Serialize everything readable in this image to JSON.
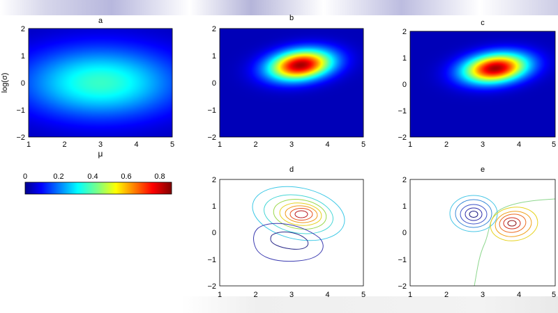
{
  "colors": {
    "background": "#ffffff",
    "axis": "#000000",
    "plot_background": "#00008f",
    "colormap": "jet"
  },
  "chart_data": [
    {
      "type": "heatmap",
      "title": "a",
      "xlabel": "μ",
      "ylabel": "log(σ)",
      "xlim": [
        1,
        5
      ],
      "ylim": [
        -2,
        2
      ],
      "xticks": [
        "1",
        "2",
        "3",
        "4",
        "5"
      ],
      "yticks": [
        "2",
        "1",
        "0",
        "−1",
        "−2"
      ],
      "peak": {
        "mu": 3.0,
        "log_sigma": 0.0,
        "value": 0.35
      },
      "spread": {
        "mu": 1.5,
        "log_sigma": 0.9,
        "rotation_deg": 0
      }
    },
    {
      "type": "heatmap",
      "title": "b",
      "xlabel": "",
      "ylabel": "",
      "xlim": [
        1,
        5
      ],
      "ylim": [
        -2,
        2
      ],
      "xticks": [
        "1",
        "2",
        "3",
        "4",
        "5"
      ],
      "yticks": [
        "2",
        "1",
        "0",
        "−1",
        "−2"
      ],
      "peak": {
        "mu": 3.25,
        "log_sigma": 0.65,
        "value": 0.85
      },
      "spread": {
        "mu": 0.62,
        "log_sigma": 0.37,
        "rotation_deg": -12
      }
    },
    {
      "type": "heatmap",
      "title": "c",
      "xlabel": "",
      "ylabel": "",
      "xlim": [
        1,
        5
      ],
      "ylim": [
        -2,
        2
      ],
      "xticks": [
        "1",
        "2",
        "3",
        "4",
        "5"
      ],
      "yticks": [
        "2",
        "1",
        "0",
        "−1",
        "−2"
      ],
      "peak": {
        "mu": 3.35,
        "log_sigma": 0.6,
        "value": 0.85
      },
      "spread": {
        "mu": 0.62,
        "log_sigma": 0.37,
        "rotation_deg": -12
      }
    },
    {
      "type": "contour",
      "title": "d",
      "xlabel": "",
      "ylabel": "",
      "xlim": [
        1,
        5
      ],
      "ylim": [
        -2,
        2
      ],
      "xticks": [
        "1",
        "2",
        "3",
        "4",
        "5"
      ],
      "yticks": [
        "2",
        "1",
        "0",
        "−1",
        "−2"
      ],
      "centers": [
        {
          "mu": 3.25,
          "log_sigma": 0.7,
          "sign": "positive"
        },
        {
          "mu": 2.9,
          "log_sigma": -0.3,
          "sign": "negative"
        }
      ]
    },
    {
      "type": "contour",
      "title": "e",
      "xlabel": "",
      "ylabel": "",
      "xlim": [
        1,
        5
      ],
      "ylim": [
        -2,
        2
      ],
      "xticks": [
        "1",
        "2",
        "3",
        "4",
        "5"
      ],
      "yticks": [
        "2",
        "1",
        "0",
        "−1",
        "−2"
      ],
      "centers": [
        {
          "mu": 2.75,
          "log_sigma": 0.65,
          "sign": "negative"
        },
        {
          "mu": 3.8,
          "log_sigma": 0.3,
          "sign": "positive"
        }
      ]
    }
  ],
  "colorbar": {
    "ticks": [
      "0",
      "0.2",
      "0.4",
      "0.6",
      "0.8"
    ],
    "tick_values": [
      0,
      0.2,
      0.4,
      0.6,
      0.8
    ],
    "range": [
      0,
      0.87
    ]
  }
}
